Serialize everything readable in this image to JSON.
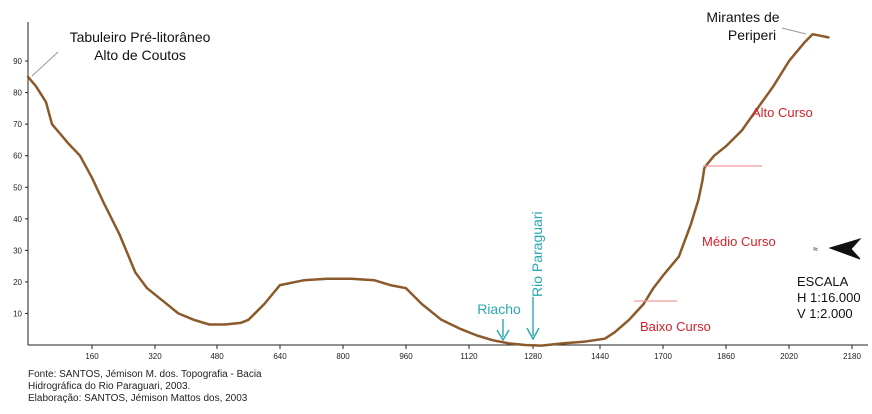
{
  "chart_data": {
    "type": "line",
    "xlabel": "",
    "ylabel": "",
    "xlim": [
      0,
      2180
    ],
    "ylim": [
      0,
      100
    ],
    "x_ticks": [
      160,
      320,
      480,
      640,
      800,
      960,
      1120,
      1280,
      1440,
      1700,
      1860,
      2020,
      2180
    ],
    "y_ticks": [
      10,
      20,
      30,
      40,
      50,
      60,
      70,
      80,
      90
    ],
    "line_color": "#8b5a2b",
    "series": [
      {
        "x": [
          0,
          20,
          45,
          60,
          80,
          100,
          130,
          160,
          190,
          230,
          270,
          300,
          340,
          380,
          420,
          460,
          500,
          540,
          560,
          600,
          640,
          700,
          760,
          820,
          880,
          920,
          960,
          1000,
          1050,
          1100,
          1140,
          1180,
          1220,
          1260,
          1300,
          1350,
          1400,
          1460,
          1500,
          1560,
          1620,
          1660,
          1700,
          1740,
          1770,
          1790,
          1800,
          1805,
          1810,
          1830,
          1860,
          1900,
          1940,
          1980,
          2020,
          2060,
          2080,
          2100,
          2120
        ],
        "y": [
          85,
          82,
          77,
          70,
          67,
          64,
          60,
          53,
          45,
          35,
          23,
          18,
          14,
          10,
          8,
          6.5,
          6.5,
          7,
          8,
          13,
          19,
          20.5,
          21,
          21,
          20.5,
          19,
          18,
          13,
          8,
          5,
          3,
          1.5,
          0.5,
          0,
          -0.2,
          0.5,
          1,
          2,
          4,
          8,
          13,
          18,
          22,
          28,
          38,
          46,
          52,
          56,
          57,
          60,
          63,
          68,
          75,
          82,
          90,
          96,
          98.5,
          98,
          97.5
        ]
      }
    ],
    "ridge_labels": {
      "left": [
        "Tabuleiro Pré-litorâneo",
        "Alto de Coutos"
      ],
      "right": [
        "Mirantes de",
        "Periperi"
      ]
    },
    "zones": {
      "alto": "Alto Curso",
      "medio": "Médio Curso",
      "baixo": "Baixo Curso",
      "color": "#d2212b"
    },
    "rivers": {
      "riacho": "Riacho",
      "rio": "Rio Paraguari",
      "color": "#2aa7b0"
    },
    "scale": {
      "title": "ESCALA",
      "h": "H 1:16.000",
      "v": "V  1:2.000"
    }
  },
  "source": {
    "line1": "Fonte: SANTOS, Jémison M. dos. Topografia - Bacia",
    "line2": "Hidrográfica do Rio Paraguari, 2003.",
    "line3": "Elaboração: SANTOS, Jémison Mattos dos, 2003"
  }
}
